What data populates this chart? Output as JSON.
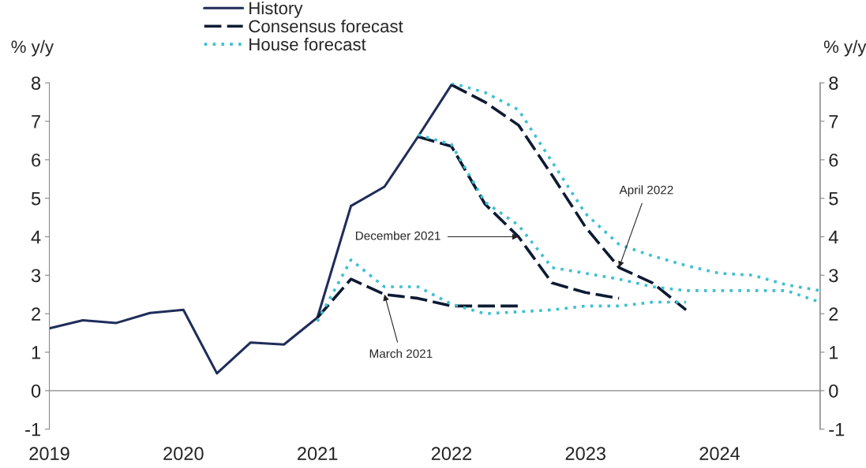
{
  "chart_data": {
    "type": "line",
    "ylabel": "% y/y",
    "y2label": "% y/y",
    "xlim": [
      2019,
      2024.75
    ],
    "xticks": [
      2019,
      2020,
      2021,
      2022,
      2023,
      2024
    ],
    "ylim": [
      -1,
      8
    ],
    "yticks": [
      -1,
      0,
      1,
      2,
      3,
      4,
      5,
      6,
      7,
      8
    ],
    "y2lim": [
      -1,
      8
    ],
    "y2ticks": [
      -1,
      0,
      1,
      2,
      3,
      4,
      5,
      6,
      7,
      8
    ],
    "legend": "top",
    "series": [
      {
        "name": "History",
        "color": "#1f2d5a",
        "line_style": "solid",
        "x": [
          2019.0,
          2019.25,
          2019.5,
          2019.75,
          2020.0,
          2020.25,
          2020.5,
          2020.75,
          2021.0,
          2021.25,
          2021.5,
          2021.75,
          2022.0
        ],
        "values": [
          1.62,
          1.83,
          1.76,
          2.02,
          2.1,
          0.45,
          1.25,
          1.2,
          1.9,
          4.8,
          5.3,
          6.6,
          7.95
        ]
      },
      {
        "name": "Consensus forecast",
        "color": "#0d1b33",
        "line_style": "dashed",
        "x": [
          2021.0,
          2021.25,
          2021.5,
          2021.75,
          2022.0,
          2022.25,
          2022.5
        ],
        "values": [
          1.9,
          2.9,
          2.5,
          2.4,
          2.2,
          2.2,
          2.2
        ]
      },
      {
        "color": "#0d1b33",
        "line_style": "dashed",
        "x": [
          2021.75,
          2022.0,
          2022.25,
          2022.5,
          2022.75,
          2023.0,
          2023.25
        ],
        "values": [
          6.6,
          6.35,
          4.85,
          4.0,
          2.8,
          2.55,
          2.4
        ]
      },
      {
        "color": "#0d1b33",
        "line_style": "dashed",
        "x": [
          2022.0,
          2022.25,
          2022.5,
          2022.75,
          2023.0,
          2023.25,
          2023.5,
          2023.75
        ],
        "values": [
          7.95,
          7.5,
          6.9,
          5.6,
          4.25,
          3.2,
          2.8,
          2.1
        ]
      },
      {
        "name": "House forecast",
        "color": "#3cc0d0",
        "line_style": "dotted",
        "x": [
          2021.0,
          2021.25,
          2021.5,
          2021.75,
          2022.0,
          2022.25,
          2022.5,
          2022.75,
          2023.0,
          2023.25,
          2023.5,
          2023.75
        ],
        "values": [
          1.8,
          3.4,
          2.7,
          2.7,
          2.25,
          2.0,
          2.05,
          2.1,
          2.2,
          2.2,
          2.3,
          2.3
        ]
      },
      {
        "color": "#3cc0d0",
        "line_style": "dotted",
        "x": [
          2021.75,
          2022.0,
          2022.25,
          2022.5,
          2022.75,
          2023.0,
          2023.25,
          2023.5,
          2023.75,
          2024.0,
          2024.25,
          2024.5,
          2024.75
        ],
        "values": [
          6.65,
          6.4,
          4.9,
          4.3,
          3.2,
          3.05,
          2.9,
          2.7,
          2.6,
          2.6,
          2.6,
          2.6,
          2.3
        ]
      },
      {
        "color": "#3cc0d0",
        "line_style": "dotted",
        "x": [
          2022.0,
          2022.25,
          2022.5,
          2022.75,
          2023.0,
          2023.25,
          2023.5,
          2023.75,
          2024.0,
          2024.25,
          2024.5,
          2024.75
        ],
        "values": [
          8.0,
          7.75,
          7.3,
          5.95,
          4.6,
          3.8,
          3.5,
          3.25,
          3.05,
          3.0,
          2.75,
          2.6
        ]
      }
    ],
    "annotations": [
      {
        "text": "March 2021",
        "x": 2021.5,
        "y": 2.5
      },
      {
        "text": "December 2021",
        "x": 2022.5,
        "y": 4.0
      },
      {
        "text": "April 2022",
        "x": 2023.25,
        "y": 3.2
      }
    ]
  }
}
